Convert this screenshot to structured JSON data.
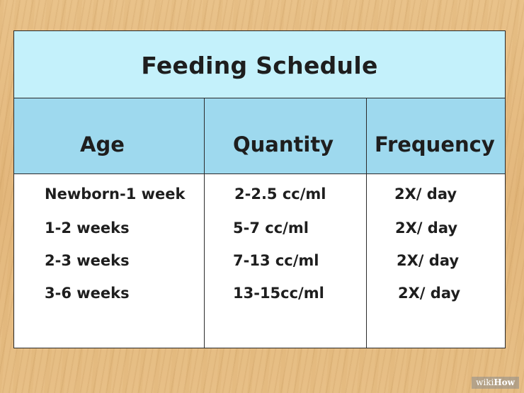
{
  "title": "Feeding Schedule",
  "columns": [
    "Age",
    "Quantity",
    "Frequency"
  ],
  "rows": [
    {
      "age": "Newborn-1 week",
      "quantity": "2-2.5 cc/ml",
      "frequency": "2X/ day"
    },
    {
      "age": "1-2 weeks",
      "quantity": "5-7 cc/ml",
      "frequency": "2X/ day"
    },
    {
      "age": "2-3 weeks",
      "quantity": "7-13 cc/ml",
      "frequency": "2X/ day"
    },
    {
      "age": "3-6 weeks",
      "quantity": "13-15cc/ml",
      "frequency": "2X/ day"
    }
  ],
  "watermark": {
    "prefix": "wiki",
    "suffix": "How"
  },
  "colors": {
    "title_bg": "#c4f1fb",
    "header_bg": "#9ed9ee",
    "wood": "#e6bd84"
  }
}
